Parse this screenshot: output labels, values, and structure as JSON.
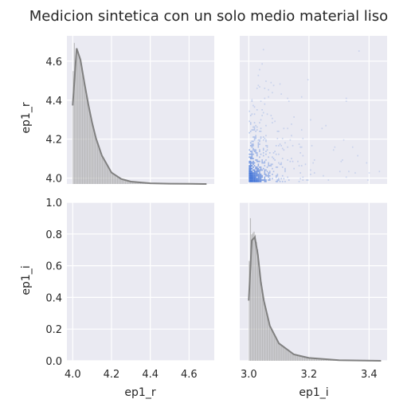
{
  "chart_data": {
    "type": "pairplot",
    "title": "Medicion sintetica con un solo medio material liso",
    "variables": [
      "ep1_r",
      "ep1_i"
    ],
    "background": "#eaeaf2",
    "grid": true,
    "hist_color": "#a9a9a9",
    "kde_color": "#808080",
    "joint_color": "#3b6fd6",
    "axes": {
      "ep1_r": {
        "range": [
          3.97,
          4.73
        ],
        "ticks": [
          "4.0",
          "4.2",
          "4.4",
          "4.6"
        ]
      },
      "ep1_i": {
        "range": [
          2.97,
          3.46
        ],
        "ticks": [
          "3.0",
          "3.2",
          "3.4"
        ]
      },
      "density": {
        "range": [
          0,
          1.0
        ],
        "ticks": [
          "0.0",
          "0.2",
          "0.4",
          "0.6",
          "0.8",
          "1.0"
        ]
      }
    },
    "panels": [
      {
        "id": "ep1_r-diag",
        "type": "hist+kde",
        "variable": "ep1_r",
        "kde": {
          "x": [
            4.0,
            4.02,
            4.04,
            4.06,
            4.08,
            4.1,
            4.12,
            4.15,
            4.2,
            4.25,
            4.3,
            4.4,
            4.5,
            4.6,
            4.69
          ],
          "y": [
            0.55,
            0.95,
            0.87,
            0.71,
            0.56,
            0.43,
            0.32,
            0.2,
            0.08,
            0.035,
            0.017,
            0.005,
            0.002,
            0.001,
            0.0
          ]
        },
        "hist_peak_x": 4.01,
        "hist_peak": 1.0
      },
      {
        "id": "joint",
        "type": "hist2d",
        "x": "ep1_i",
        "y": "ep1_r",
        "x_range_observed": [
          3.0,
          3.45
        ],
        "y_range_observed": [
          3.98,
          4.62
        ],
        "densest_region": {
          "x": 3.01,
          "y": 4.0
        }
      },
      {
        "id": "empty",
        "type": "empty",
        "x": "ep1_r",
        "y": "ep1_i"
      },
      {
        "id": "ep1_i-diag",
        "type": "hist+kde",
        "variable": "ep1_i",
        "kde": {
          "x": [
            3.0,
            3.01,
            3.02,
            3.03,
            3.04,
            3.05,
            3.07,
            3.1,
            3.15,
            3.2,
            3.3,
            3.44
          ],
          "y": [
            0.38,
            0.76,
            0.78,
            0.67,
            0.5,
            0.38,
            0.22,
            0.11,
            0.04,
            0.018,
            0.004,
            0.0
          ]
        },
        "hist_peak_x": 3.005,
        "hist_peak": 0.9
      }
    ],
    "xlabels": [
      "ep1_r",
      "ep1_i"
    ],
    "ylabels": [
      "ep1_r",
      "ep1_i"
    ]
  }
}
